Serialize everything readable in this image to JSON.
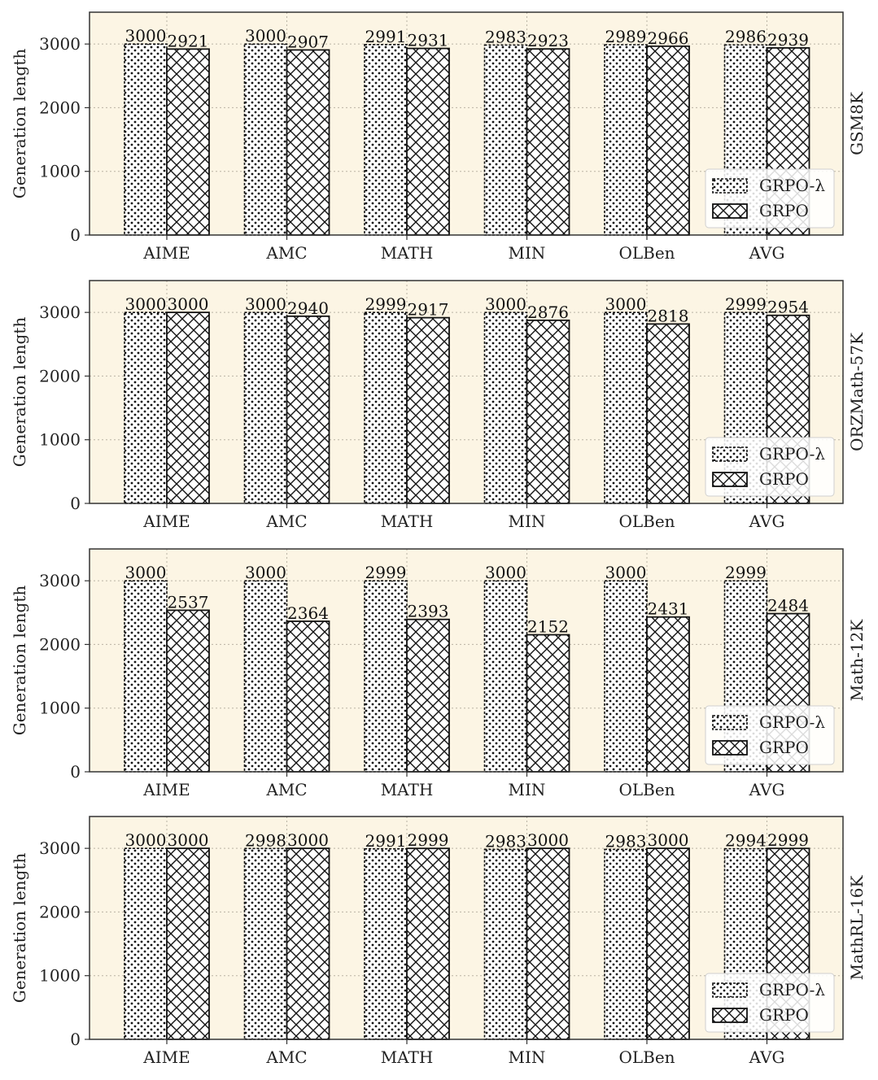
{
  "chart_data": [
    {
      "type": "bar",
      "panel_label": "GSM8K",
      "ylabel": "Generation length",
      "categories": [
        "AIME",
        "AMC",
        "MATH",
        "MIN",
        "OLBen",
        "AVG"
      ],
      "yticks": [
        "0",
        "1000",
        "2000",
        "3000"
      ],
      "ylim": [
        0,
        3500
      ],
      "series": [
        {
          "name": "GRPO-λ",
          "values": [
            3000,
            3000,
            2991,
            2983,
            2989,
            2986
          ]
        },
        {
          "name": "GRPO",
          "values": [
            2921,
            2907,
            2931,
            2923,
            2966,
            2939
          ]
        }
      ],
      "data_labels": [
        [
          "3000",
          "3000",
          "2991",
          "2983",
          "2989",
          "2986"
        ],
        [
          "2921",
          "2907",
          "2931",
          "2923",
          "2966",
          "2939"
        ]
      ],
      "legend_position": "bottom-right",
      "grid": true
    },
    {
      "type": "bar",
      "panel_label": "ORZMath-57K",
      "ylabel": "Generation length",
      "categories": [
        "AIME",
        "AMC",
        "MATH",
        "MIN",
        "OLBen",
        "AVG"
      ],
      "yticks": [
        "0",
        "1000",
        "2000",
        "3000"
      ],
      "ylim": [
        0,
        3500
      ],
      "series": [
        {
          "name": "GRPO-λ",
          "values": [
            3000,
            3000,
            2999,
            3000,
            3000,
            2999
          ]
        },
        {
          "name": "GRPO",
          "values": [
            3000,
            2940,
            2917,
            2876,
            2818,
            2954
          ]
        }
      ],
      "data_labels": [
        [
          "3000",
          "3000",
          "2999",
          "3000",
          "3000",
          "2999"
        ],
        [
          "3000",
          "2940",
          "2917",
          "2876",
          "2818",
          "2954"
        ]
      ],
      "legend_position": "bottom-right",
      "grid": true
    },
    {
      "type": "bar",
      "panel_label": "Math-12K",
      "ylabel": "Generation length",
      "categories": [
        "AIME",
        "AMC",
        "MATH",
        "MIN",
        "OLBen",
        "AVG"
      ],
      "yticks": [
        "0",
        "1000",
        "2000",
        "3000"
      ],
      "ylim": [
        0,
        3500
      ],
      "series": [
        {
          "name": "GRPO-λ",
          "values": [
            3000,
            3000,
            2999,
            3000,
            3000,
            2999
          ]
        },
        {
          "name": "GRPO",
          "values": [
            2537,
            2364,
            2393,
            2152,
            2431,
            2484
          ]
        }
      ],
      "data_labels": [
        [
          "3000",
          "3000",
          "2999",
          "3000",
          "3000",
          "2999"
        ],
        [
          "2537",
          "2364",
          "2393",
          "2152",
          "2431",
          "2484"
        ]
      ],
      "legend_position": "bottom-right",
      "grid": true
    },
    {
      "type": "bar",
      "panel_label": "MathRL-16K",
      "ylabel": "Generation length",
      "categories": [
        "AIME",
        "AMC",
        "MATH",
        "MIN",
        "OLBen",
        "AVG"
      ],
      "yticks": [
        "0",
        "1000",
        "2000",
        "3000"
      ],
      "ylim": [
        0,
        3500
      ],
      "series": [
        {
          "name": "GRPO-λ",
          "values": [
            3000,
            2998,
            2991,
            2983,
            2983,
            2994
          ]
        },
        {
          "name": "GRPO",
          "values": [
            3000,
            3000,
            2999,
            3000,
            3000,
            2999
          ]
        }
      ],
      "data_labels": [
        [
          "3000",
          "2998",
          "2991",
          "2983",
          "2983",
          "2994"
        ],
        [
          "3000",
          "3000",
          "2999",
          "3000",
          "3000",
          "2999"
        ]
      ],
      "legend_position": "bottom-right",
      "grid": true
    }
  ]
}
